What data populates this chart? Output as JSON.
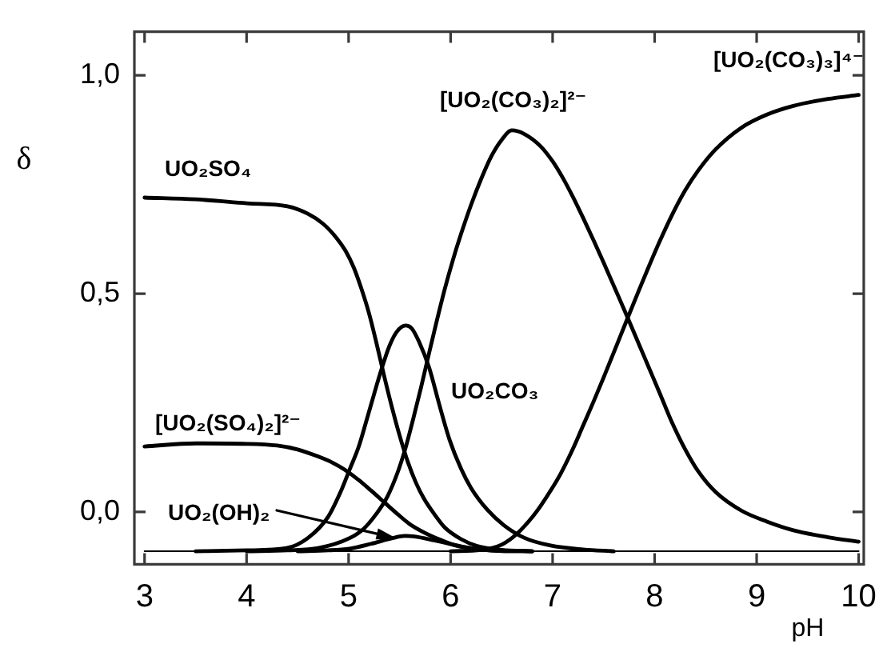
{
  "chart_data": {
    "type": "line",
    "xlabel": "pH",
    "ylabel": "δ",
    "xlim": [
      2.9,
      10.05
    ],
    "ylim": [
      -0.12,
      1.1
    ],
    "xticks": [
      3,
      4,
      5,
      6,
      7,
      8,
      9,
      10
    ],
    "yticks": [
      {
        "value": 0,
        "label": "0,0"
      },
      {
        "value": 0.5,
        "label": "0,5"
      },
      {
        "value": 1,
        "label": "1,0"
      }
    ],
    "marker": "none",
    "line_style": "solid",
    "series": [
      {
        "name": "UO₂SO₄",
        "color": "#000000",
        "x": [
          3.0,
          3.5,
          4.0,
          4.4,
          4.6,
          4.75,
          4.88,
          4.97,
          5.05,
          5.12,
          5.2,
          5.27,
          5.35,
          5.43,
          5.5,
          5.58,
          5.66,
          5.74,
          5.84,
          5.94,
          6.1,
          6.26,
          6.5,
          6.8
        ],
        "values": [
          0.72,
          0.716,
          0.707,
          0.7,
          0.683,
          0.66,
          0.628,
          0.598,
          0.56,
          0.515,
          0.455,
          0.39,
          0.31,
          0.235,
          0.175,
          0.115,
          0.067,
          0.03,
          -0.005,
          -0.035,
          -0.062,
          -0.078,
          -0.087,
          -0.09
        ]
      },
      {
        "name": "[UO₂(SO₄)₂]²⁻",
        "color": "#000000",
        "x": [
          3.0,
          3.5,
          4.0,
          4.3,
          4.5,
          4.7,
          4.85,
          4.96,
          5.1,
          5.22,
          5.35,
          5.48,
          5.6,
          5.74,
          5.9,
          6.05,
          6.25,
          6.5,
          6.8
        ],
        "values": [
          0.15,
          0.157,
          0.156,
          0.152,
          0.143,
          0.127,
          0.112,
          0.097,
          0.073,
          0.049,
          0.022,
          -0.005,
          -0.028,
          -0.047,
          -0.064,
          -0.077,
          -0.085,
          -0.089,
          -0.09
        ]
      },
      {
        "name": "UO₂CO₃",
        "color": "#000000",
        "x": [
          3.5,
          4.0,
          4.39,
          4.6,
          4.8,
          4.92,
          5.01,
          5.1,
          5.17,
          5.25,
          5.32,
          5.4,
          5.47,
          5.56,
          5.62,
          5.69,
          5.79,
          5.89,
          5.99,
          6.1,
          6.2,
          6.36,
          6.52,
          6.72,
          6.98,
          7.3,
          7.6
        ],
        "values": [
          -0.09,
          -0.088,
          -0.083,
          -0.06,
          -0.011,
          0.045,
          0.097,
          0.15,
          0.205,
          0.27,
          0.325,
          0.38,
          0.412,
          0.427,
          0.42,
          0.39,
          0.33,
          0.245,
          0.165,
          0.1,
          0.055,
          0.005,
          -0.03,
          -0.059,
          -0.077,
          -0.086,
          -0.09
        ]
      },
      {
        "name": "[UO₂(CO₃)₂]²⁻",
        "color": "#000000",
        "x": [
          4.0,
          4.4,
          4.7,
          5.01,
          5.15,
          5.27,
          5.38,
          5.48,
          5.56,
          5.63,
          5.71,
          5.79,
          5.87,
          5.94,
          6.02,
          6.1,
          6.2,
          6.3,
          6.4,
          6.5,
          6.6,
          6.72,
          6.88,
          7.0,
          7.1,
          7.2,
          7.3,
          7.4,
          7.5,
          7.62,
          7.73,
          7.85,
          7.95,
          8.05,
          8.17,
          8.3,
          8.43,
          8.6,
          8.85,
          9.1,
          9.36,
          9.7,
          10.0
        ],
        "values": [
          -0.09,
          -0.088,
          -0.083,
          -0.06,
          -0.038,
          -0.005,
          0.035,
          0.09,
          0.148,
          0.21,
          0.285,
          0.365,
          0.443,
          0.508,
          0.575,
          0.635,
          0.703,
          0.763,
          0.815,
          0.852,
          0.874,
          0.866,
          0.838,
          0.803,
          0.765,
          0.721,
          0.673,
          0.623,
          0.571,
          0.507,
          0.448,
          0.382,
          0.327,
          0.272,
          0.205,
          0.143,
          0.092,
          0.045,
          0.003,
          -0.022,
          -0.042,
          -0.058,
          -0.068
        ]
      },
      {
        "name": "[UO₂(CO₃)₃]⁴⁻",
        "color": "#000000",
        "x": [
          6.0,
          6.3,
          6.5,
          6.65,
          6.8,
          6.88,
          7.0,
          7.08,
          7.2,
          7.29,
          7.4,
          7.5,
          7.62,
          7.73,
          7.85,
          7.95,
          8.05,
          8.17,
          8.3,
          8.43,
          8.6,
          8.85,
          9.1,
          9.36,
          9.7,
          10.0
        ],
        "values": [
          -0.09,
          -0.087,
          -0.075,
          -0.05,
          -0.012,
          0.013,
          0.056,
          0.088,
          0.145,
          0.193,
          0.252,
          0.308,
          0.377,
          0.441,
          0.51,
          0.566,
          0.62,
          0.68,
          0.737,
          0.783,
          0.831,
          0.88,
          0.91,
          0.93,
          0.946,
          0.955
        ]
      },
      {
        "name": "UO₂(OH)₂",
        "color": "#000000",
        "x": [
          4.5,
          4.8,
          5.01,
          5.22,
          5.43,
          5.55,
          5.63,
          5.84,
          6.15,
          6.46,
          6.8
        ],
        "values": [
          -0.09,
          -0.088,
          -0.084,
          -0.073,
          -0.06,
          -0.055,
          -0.056,
          -0.065,
          -0.081,
          -0.089,
          -0.09
        ]
      },
      {
        "color": "#000000",
        "x": [
          3.0,
          10.0
        ],
        "values": [
          -0.09,
          -0.09
        ]
      }
    ]
  }
}
